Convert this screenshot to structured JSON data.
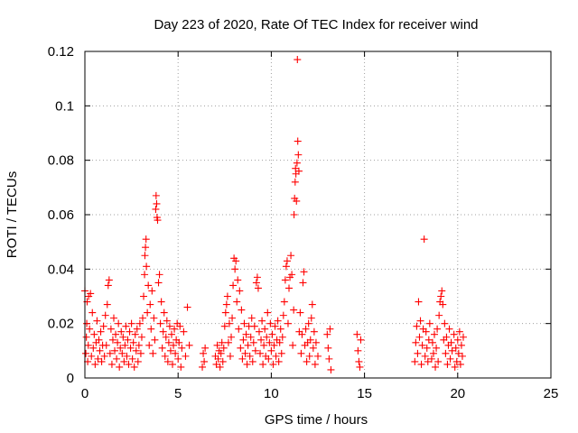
{
  "chart_data": {
    "type": "scatter",
    "title": "Day 223 of 2020, Rate Of TEC Index for receiver wind",
    "xlabel": "GPS time / hours",
    "ylabel": "ROTI / TECUs",
    "xlim": [
      0,
      25
    ],
    "ylim": [
      0,
      0.12
    ],
    "x_ticks": [
      0,
      5,
      10,
      15,
      20,
      25
    ],
    "x_tick_labels": [
      "0",
      "5",
      "10",
      "15",
      "20",
      "25"
    ],
    "y_ticks": [
      0,
      0.02,
      0.04,
      0.06,
      0.08,
      0.1,
      0.12
    ],
    "y_tick_labels": [
      "0",
      "0.02",
      "0.04",
      "0.06",
      "0.08",
      "0.1",
      "0.12"
    ],
    "grid": true,
    "marker": "+",
    "color": "#ff0000",
    "series": [
      {
        "points": [
          [
            0.0,
            0.032
          ],
          [
            0.05,
            0.009
          ],
          [
            0.08,
            0.015
          ],
          [
            0.1,
            0.02
          ],
          [
            0.12,
            0.028
          ],
          [
            0.15,
            0.006
          ],
          [
            0.18,
            0.012
          ],
          [
            0.2,
            0.03
          ],
          [
            0.25,
            0.018
          ],
          [
            0.3,
            0.031
          ],
          [
            0.35,
            0.008
          ],
          [
            0.4,
            0.024
          ],
          [
            0.45,
            0.011
          ],
          [
            0.5,
            0.016
          ],
          [
            0.55,
            0.005
          ],
          [
            0.6,
            0.013
          ],
          [
            0.65,
            0.021
          ],
          [
            0.7,
            0.007
          ],
          [
            0.75,
            0.014
          ],
          [
            0.8,
            0.01
          ],
          [
            0.85,
            0.017
          ],
          [
            0.9,
            0.006
          ],
          [
            0.95,
            0.012
          ],
          [
            1.0,
            0.019
          ],
          [
            1.05,
            0.008
          ],
          [
            1.1,
            0.023
          ],
          [
            1.15,
            0.012
          ],
          [
            1.2,
            0.027
          ],
          [
            1.25,
            0.034
          ],
          [
            1.3,
            0.036
          ],
          [
            1.35,
            0.009
          ],
          [
            1.4,
            0.018
          ],
          [
            1.45,
            0.005
          ],
          [
            1.5,
            0.014
          ],
          [
            1.55,
            0.022
          ],
          [
            1.6,
            0.01
          ],
          [
            1.65,
            0.016
          ],
          [
            1.7,
            0.007
          ],
          [
            1.75,
            0.013
          ],
          [
            1.8,
            0.02
          ],
          [
            1.85,
            0.004
          ],
          [
            1.9,
            0.011
          ],
          [
            1.95,
            0.017
          ],
          [
            2.0,
            0.009
          ],
          [
            2.05,
            0.015
          ],
          [
            2.1,
            0.006
          ],
          [
            2.15,
            0.012
          ],
          [
            2.2,
            0.019
          ],
          [
            2.25,
            0.008
          ],
          [
            2.3,
            0.014
          ],
          [
            2.35,
            0.005
          ],
          [
            2.4,
            0.017
          ],
          [
            2.45,
            0.011
          ],
          [
            2.5,
            0.02
          ],
          [
            2.55,
            0.007
          ],
          [
            2.6,
            0.013
          ],
          [
            2.65,
            0.004
          ],
          [
            2.7,
            0.016
          ],
          [
            2.75,
            0.01
          ],
          [
            2.8,
            0.018
          ],
          [
            2.85,
            0.006
          ],
          [
            2.9,
            0.012
          ],
          [
            2.95,
            0.02
          ],
          [
            3.0,
            0.009
          ],
          [
            3.05,
            0.015
          ],
          [
            3.1,
            0.022
          ],
          [
            3.15,
            0.03
          ],
          [
            3.2,
            0.038
          ],
          [
            3.22,
            0.045
          ],
          [
            3.25,
            0.048
          ],
          [
            3.28,
            0.051
          ],
          [
            3.3,
            0.041
          ],
          [
            3.35,
            0.024
          ],
          [
            3.4,
            0.034
          ],
          [
            3.45,
            0.012
          ],
          [
            3.5,
            0.027
          ],
          [
            3.55,
            0.018
          ],
          [
            3.6,
            0.032
          ],
          [
            3.65,
            0.009
          ],
          [
            3.7,
            0.022
          ],
          [
            3.75,
            0.014
          ],
          [
            3.8,
            0.062
          ],
          [
            3.82,
            0.067
          ],
          [
            3.85,
            0.064
          ],
          [
            3.87,
            0.059
          ],
          [
            3.9,
            0.058
          ],
          [
            3.95,
            0.035
          ],
          [
            4.0,
            0.038
          ],
          [
            4.05,
            0.02
          ],
          [
            4.1,
            0.028
          ],
          [
            4.15,
            0.011
          ],
          [
            4.2,
            0.017
          ],
          [
            4.25,
            0.024
          ],
          [
            4.3,
            0.008
          ],
          [
            4.35,
            0.015
          ],
          [
            4.4,
            0.021
          ],
          [
            4.45,
            0.006
          ],
          [
            4.5,
            0.013
          ],
          [
            4.55,
            0.019
          ],
          [
            4.6,
            0.01
          ],
          [
            4.65,
            0.016
          ],
          [
            4.7,
            0.005
          ],
          [
            4.75,
            0.012
          ],
          [
            4.8,
            0.018
          ],
          [
            4.85,
            0.009
          ],
          [
            4.9,
            0.014
          ],
          [
            4.95,
            0.02
          ],
          [
            5.0,
            0.007
          ],
          [
            5.05,
            0.013
          ],
          [
            5.1,
            0.019
          ],
          [
            5.15,
            0.004
          ],
          [
            5.2,
            0.011
          ],
          [
            5.3,
            0.017
          ],
          [
            5.4,
            0.008
          ],
          [
            5.5,
            0.026
          ],
          [
            5.6,
            0.012
          ],
          [
            6.3,
            0.004
          ],
          [
            6.35,
            0.009
          ],
          [
            6.4,
            0.006
          ],
          [
            6.45,
            0.011
          ],
          [
            7.0,
            0.008
          ],
          [
            7.05,
            0.005
          ],
          [
            7.1,
            0.012
          ],
          [
            7.15,
            0.007
          ],
          [
            7.2,
            0.01
          ],
          [
            7.25,
            0.004
          ],
          [
            7.3,
            0.009
          ],
          [
            7.35,
            0.013
          ],
          [
            7.4,
            0.006
          ],
          [
            7.45,
            0.011
          ],
          [
            7.5,
            0.019
          ],
          [
            7.55,
            0.024
          ],
          [
            7.6,
            0.027
          ],
          [
            7.65,
            0.03
          ],
          [
            7.7,
            0.013
          ],
          [
            7.75,
            0.02
          ],
          [
            7.8,
            0.008
          ],
          [
            7.85,
            0.015
          ],
          [
            7.9,
            0.022
          ],
          [
            7.95,
            0.034
          ],
          [
            8.0,
            0.044
          ],
          [
            8.05,
            0.04
          ],
          [
            8.1,
            0.043
          ],
          [
            8.15,
            0.028
          ],
          [
            8.2,
            0.036
          ],
          [
            8.25,
            0.018
          ],
          [
            8.3,
            0.032
          ],
          [
            8.35,
            0.011
          ],
          [
            8.4,
            0.025
          ],
          [
            8.45,
            0.007
          ],
          [
            8.5,
            0.014
          ],
          [
            8.55,
            0.02
          ],
          [
            8.6,
            0.009
          ],
          [
            8.65,
            0.016
          ],
          [
            8.7,
            0.005
          ],
          [
            8.75,
            0.012
          ],
          [
            8.8,
            0.019
          ],
          [
            8.85,
            0.008
          ],
          [
            8.9,
            0.015
          ],
          [
            8.95,
            0.022
          ],
          [
            9.0,
            0.006
          ],
          [
            9.05,
            0.013
          ],
          [
            9.1,
            0.019
          ],
          [
            9.15,
            0.01
          ],
          [
            9.2,
            0.035
          ],
          [
            9.25,
            0.037
          ],
          [
            9.3,
            0.033
          ],
          [
            9.35,
            0.017
          ],
          [
            9.4,
            0.009
          ],
          [
            9.45,
            0.014
          ],
          [
            9.5,
            0.021
          ],
          [
            9.55,
            0.005
          ],
          [
            9.6,
            0.012
          ],
          [
            9.65,
            0.018
          ],
          [
            9.7,
            0.008
          ],
          [
            9.75,
            0.015
          ],
          [
            9.8,
            0.024
          ],
          [
            9.85,
            0.007
          ],
          [
            9.9,
            0.013
          ],
          [
            9.95,
            0.02
          ],
          [
            10.0,
            0.01
          ],
          [
            10.05,
            0.016
          ],
          [
            10.1,
            0.005
          ],
          [
            10.15,
            0.012
          ],
          [
            10.2,
            0.019
          ],
          [
            10.25,
            0.008
          ],
          [
            10.3,
            0.014
          ],
          [
            10.35,
            0.021
          ],
          [
            10.4,
            0.006
          ],
          [
            10.45,
            0.013
          ],
          [
            10.5,
            0.018
          ],
          [
            10.55,
            0.009
          ],
          [
            10.6,
            0.015
          ],
          [
            10.65,
            0.023
          ],
          [
            10.7,
            0.028
          ],
          [
            10.75,
            0.036
          ],
          [
            10.8,
            0.041
          ],
          [
            10.85,
            0.043
          ],
          [
            10.9,
            0.02
          ],
          [
            10.95,
            0.033
          ],
          [
            11.0,
            0.037
          ],
          [
            11.05,
            0.045
          ],
          [
            11.1,
            0.038
          ],
          [
            11.15,
            0.012
          ],
          [
            11.2,
            0.025
          ],
          [
            11.22,
            0.06
          ],
          [
            11.25,
            0.066
          ],
          [
            11.28,
            0.072
          ],
          [
            11.3,
            0.077
          ],
          [
            11.32,
            0.075
          ],
          [
            11.35,
            0.065
          ],
          [
            11.38,
            0.079
          ],
          [
            11.4,
            0.117
          ],
          [
            11.42,
            0.087
          ],
          [
            11.45,
            0.082
          ],
          [
            11.48,
            0.076
          ],
          [
            11.5,
            0.017
          ],
          [
            11.55,
            0.024
          ],
          [
            11.6,
            0.009
          ],
          [
            11.65,
            0.016
          ],
          [
            11.7,
            0.035
          ],
          [
            11.75,
            0.039
          ],
          [
            11.8,
            0.012
          ],
          [
            11.85,
            0.018
          ],
          [
            11.9,
            0.006
          ],
          [
            11.95,
            0.013
          ],
          [
            12.0,
            0.02
          ],
          [
            12.05,
            0.008
          ],
          [
            12.1,
            0.014
          ],
          [
            12.15,
            0.022
          ],
          [
            12.2,
            0.027
          ],
          [
            12.25,
            0.011
          ],
          [
            12.3,
            0.017
          ],
          [
            12.35,
            0.005
          ],
          [
            12.4,
            0.013
          ],
          [
            12.5,
            0.008
          ],
          [
            13.0,
            0.016
          ],
          [
            13.05,
            0.011
          ],
          [
            13.1,
            0.007
          ],
          [
            13.15,
            0.018
          ],
          [
            13.2,
            0.003
          ],
          [
            14.6,
            0.016
          ],
          [
            14.65,
            0.01
          ],
          [
            14.7,
            0.006
          ],
          [
            14.75,
            0.004
          ],
          [
            14.8,
            0.014
          ],
          [
            17.7,
            0.006
          ],
          [
            17.75,
            0.013
          ],
          [
            17.8,
            0.019
          ],
          [
            17.85,
            0.009
          ],
          [
            17.9,
            0.028
          ],
          [
            17.95,
            0.015
          ],
          [
            18.0,
            0.021
          ],
          [
            18.05,
            0.005
          ],
          [
            18.1,
            0.012
          ],
          [
            18.15,
            0.018
          ],
          [
            18.2,
            0.051
          ],
          [
            18.25,
            0.008
          ],
          [
            18.3,
            0.017
          ],
          [
            18.35,
            0.011
          ],
          [
            18.4,
            0.006
          ],
          [
            18.45,
            0.014
          ],
          [
            18.5,
            0.02
          ],
          [
            18.6,
            0.007
          ],
          [
            18.65,
            0.013
          ],
          [
            18.7,
            0.009
          ],
          [
            18.75,
            0.016
          ],
          [
            18.8,
            0.004
          ],
          [
            18.85,
            0.011
          ],
          [
            18.9,
            0.018
          ],
          [
            18.95,
            0.006
          ],
          [
            19.0,
            0.023
          ],
          [
            19.05,
            0.028
          ],
          [
            19.1,
            0.03
          ],
          [
            19.15,
            0.032
          ],
          [
            19.2,
            0.027
          ],
          [
            19.25,
            0.014
          ],
          [
            19.3,
            0.02
          ],
          [
            19.35,
            0.009
          ],
          [
            19.4,
            0.015
          ],
          [
            19.45,
            0.005
          ],
          [
            19.5,
            0.012
          ],
          [
            19.55,
            0.018
          ],
          [
            19.6,
            0.007
          ],
          [
            19.65,
            0.013
          ],
          [
            19.7,
            0.01
          ],
          [
            19.8,
            0.016
          ],
          [
            19.85,
            0.004
          ],
          [
            19.9,
            0.011
          ],
          [
            19.95,
            0.006
          ],
          [
            20.0,
            0.014
          ],
          [
            20.05,
            0.009
          ],
          [
            20.1,
            0.017
          ],
          [
            20.15,
            0.005
          ],
          [
            20.2,
            0.012
          ],
          [
            20.25,
            0.008
          ],
          [
            20.3,
            0.015
          ]
        ]
      }
    ]
  }
}
